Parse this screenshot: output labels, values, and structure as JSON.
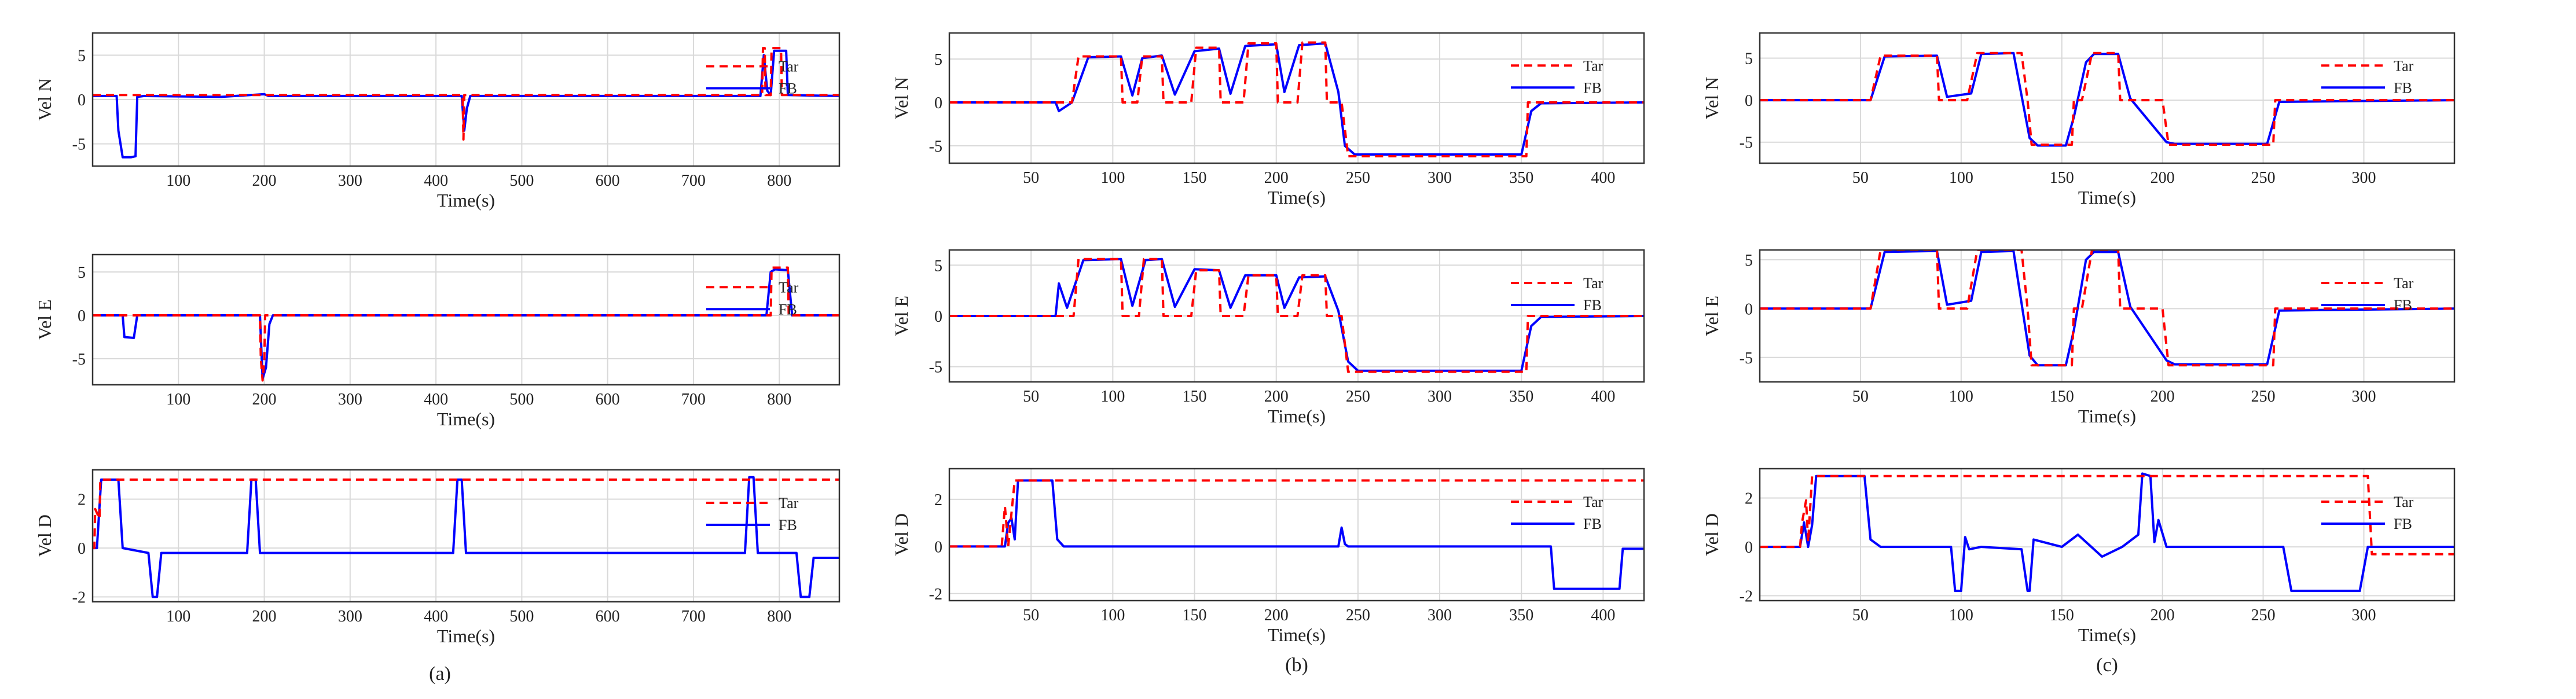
{
  "figure": {
    "colors": {
      "target": "#ff0000",
      "feedback": "#0000ff",
      "grid": "#d9d9d9",
      "axis": "#333333"
    },
    "legend": {
      "placement": "right",
      "entries": [
        "Tar",
        "FB"
      ]
    },
    "panel_labels": [
      "(a)",
      "(b)",
      "(c)"
    ]
  },
  "chart_data": [
    {
      "type": "line",
      "column": "(a)",
      "ylabel": "Vel N",
      "xlabel": "Time(s)",
      "xlim": [
        0,
        870
      ],
      "ylim": [
        -7.5,
        7.5
      ],
      "xticks": [
        100,
        200,
        300,
        400,
        500,
        600,
        700,
        800
      ],
      "yticks": [
        5,
        0,
        -5
      ],
      "series": [
        {
          "name": "Tar",
          "x": [
            0,
            45,
            46,
            47,
            48,
            49,
            50,
            430,
            431,
            432,
            433,
            436,
            437,
            780,
            781,
            783,
            784,
            790,
            791,
            792,
            793,
            800,
            801,
            802,
            803,
            870
          ],
          "y": [
            0.5,
            0.5,
            0.5,
            0.5,
            0.5,
            0.5,
            0.5,
            0.5,
            0.5,
            -4.5,
            0.5,
            0.5,
            0.5,
            0.5,
            5.8,
            5.8,
            0.5,
            0.5,
            5.8,
            5.8,
            5.8,
            5.8,
            5.8,
            5.8,
            0.5,
            0.5
          ]
        },
        {
          "name": "FB",
          "x": [
            0,
            28,
            30,
            35,
            45,
            50,
            52,
            60,
            150,
            200,
            205,
            430,
            433,
            436,
            440,
            778,
            782,
            786,
            790,
            794,
            808,
            810,
            870
          ],
          "y": [
            0.4,
            0.4,
            -3.5,
            -6.5,
            -6.5,
            -6.4,
            0.3,
            0.4,
            0.3,
            0.6,
            0.4,
            0.4,
            -3.5,
            -1.0,
            0.4,
            0.4,
            5.0,
            1.0,
            0.5,
            5.5,
            5.5,
            0.5,
            0.4
          ]
        }
      ]
    },
    {
      "type": "line",
      "column": "(a)",
      "ylabel": "Vel E",
      "xlabel": "Time(s)",
      "xlim": [
        0,
        870
      ],
      "ylim": [
        -8,
        7
      ],
      "xticks": [
        100,
        200,
        300,
        400,
        500,
        600,
        700,
        800
      ],
      "yticks": [
        5,
        0,
        -5
      ],
      "series": [
        {
          "name": "Tar",
          "x": [
            0,
            195,
            196,
            198,
            200,
            201,
            790,
            791,
            810,
            811,
            870
          ],
          "y": [
            0,
            0,
            -5,
            -7.5,
            -5,
            0,
            0,
            5.5,
            5.5,
            0,
            0
          ]
        },
        {
          "name": "FB",
          "x": [
            0,
            35,
            37,
            48,
            52,
            60,
            190,
            195,
            198,
            202,
            206,
            210,
            785,
            790,
            795,
            810,
            815,
            870
          ],
          "y": [
            0,
            0,
            -2.5,
            -2.6,
            0,
            0,
            0,
            0,
            -7.3,
            -6.0,
            -1.0,
            0,
            0,
            5.0,
            5.3,
            5.2,
            0,
            0
          ]
        }
      ]
    },
    {
      "type": "line",
      "column": "(a)",
      "ylabel": "Vel D",
      "xlabel": "Time(s)",
      "xlim": [
        0,
        870
      ],
      "ylim": [
        -2.2,
        3.2
      ],
      "xticks": [
        100,
        200,
        300,
        400,
        500,
        600,
        700,
        800
      ],
      "yticks": [
        2,
        0,
        -2
      ],
      "series": [
        {
          "name": "Tar",
          "x": [
            0,
            2,
            3,
            8,
            9,
            12,
            870
          ],
          "y": [
            0,
            0,
            1.6,
            1.2,
            2.8,
            2.8,
            2.8
          ]
        },
        {
          "name": "FB",
          "x": [
            0,
            5,
            10,
            30,
            35,
            65,
            70,
            75,
            80,
            180,
            185,
            190,
            195,
            420,
            425,
            430,
            435,
            760,
            765,
            770,
            775,
            790,
            800,
            820,
            825,
            835,
            840,
            870
          ],
          "y": [
            0,
            0,
            2.8,
            2.8,
            0,
            -0.2,
            -2.0,
            -2.0,
            -0.2,
            -0.2,
            2.8,
            2.8,
            -0.2,
            -0.2,
            2.8,
            2.8,
            -0.2,
            -0.2,
            2.9,
            2.9,
            -0.2,
            -0.2,
            -0.2,
            -0.2,
            -2.0,
            -2.0,
            -0.4,
            -0.4
          ]
        }
      ]
    },
    {
      "type": "line",
      "column": "(b)",
      "ylabel": "Vel N",
      "xlabel": "Time(s)",
      "xlim": [
        0,
        425
      ],
      "ylim": [
        -7,
        8
      ],
      "xticks": [
        50,
        100,
        150,
        200,
        250,
        300,
        350,
        400
      ],
      "yticks": [
        5,
        0,
        -5
      ],
      "series": [
        {
          "name": "Tar",
          "x": [
            0,
            75,
            79,
            105,
            106,
            115,
            118,
            130,
            131,
            148,
            151,
            165,
            166,
            180,
            183,
            200,
            201,
            213,
            216,
            230,
            231,
            240,
            244,
            353,
            354,
            425
          ],
          "y": [
            0,
            0,
            5.3,
            5.3,
            0,
            0,
            5.3,
            5.3,
            0,
            0,
            6.3,
            6.3,
            0,
            0,
            6.8,
            6.8,
            0,
            0,
            6.9,
            6.9,
            0,
            0,
            -6.2,
            -6.2,
            0,
            0
          ]
        },
        {
          "name": "FB",
          "x": [
            0,
            65,
            67,
            75,
            85,
            105,
            112,
            118,
            130,
            138,
            150,
            165,
            172,
            181,
            200,
            205,
            214,
            230,
            238,
            242,
            248,
            350,
            356,
            362,
            425
          ],
          "y": [
            0,
            0,
            -1.0,
            0,
            5.2,
            5.3,
            0.8,
            5.1,
            5.4,
            0.9,
            5.9,
            6.2,
            1.0,
            6.5,
            6.7,
            1.2,
            6.6,
            6.8,
            1.2,
            -5.0,
            -6.0,
            -6.0,
            -1.0,
            -0.1,
            0
          ]
        }
      ]
    },
    {
      "type": "line",
      "column": "(b)",
      "ylabel": "Vel E",
      "xlabel": "Time(s)",
      "xlim": [
        0,
        425
      ],
      "ylim": [
        -6.5,
        6.5
      ],
      "xticks": [
        50,
        100,
        150,
        200,
        250,
        300,
        350,
        400
      ],
      "yticks": [
        5,
        0,
        -5
      ],
      "series": [
        {
          "name": "Tar",
          "x": [
            0,
            76,
            79,
            105,
            106,
            116,
            119,
            130,
            131,
            148,
            151,
            165,
            166,
            180,
            183,
            200,
            201,
            213,
            216,
            230,
            231,
            240,
            244,
            353,
            354,
            425
          ],
          "y": [
            0,
            0,
            5.6,
            5.6,
            0,
            0,
            5.6,
            5.6,
            0,
            0,
            4.5,
            4.5,
            0,
            0,
            4.0,
            4.0,
            0,
            0,
            4.0,
            4.0,
            0,
            0,
            -5.5,
            -5.5,
            0,
            0
          ]
        },
        {
          "name": "FB",
          "x": [
            0,
            65,
            67,
            72,
            82,
            105,
            112,
            120,
            130,
            138,
            150,
            165,
            172,
            181,
            200,
            205,
            214,
            230,
            238,
            244,
            250,
            350,
            356,
            362,
            425
          ],
          "y": [
            0,
            0,
            3.2,
            0.8,
            5.5,
            5.6,
            1.0,
            5.5,
            5.6,
            0.9,
            4.6,
            4.5,
            0.8,
            4.0,
            4.0,
            0.8,
            3.8,
            3.9,
            0.5,
            -4.5,
            -5.4,
            -5.4,
            -1.0,
            -0.1,
            0
          ]
        }
      ]
    },
    {
      "type": "line",
      "column": "(b)",
      "ylabel": "Vel D",
      "xlabel": "Time(s)",
      "xlim": [
        0,
        425
      ],
      "ylim": [
        -2.3,
        3.3
      ],
      "xticks": [
        50,
        100,
        150,
        200,
        250,
        300,
        350,
        400
      ],
      "yticks": [
        2,
        0,
        -2
      ],
      "series": [
        {
          "name": "Tar",
          "x": [
            0,
            32,
            34,
            36,
            40,
            425
          ],
          "y": [
            0,
            0,
            1.7,
            0,
            2.8,
            2.8
          ]
        },
        {
          "name": "FB",
          "x": [
            0,
            34,
            36,
            38,
            40,
            42,
            63,
            66,
            70,
            238,
            240,
            242,
            244,
            368,
            370,
            410,
            412,
            425
          ],
          "y": [
            0,
            0,
            1.0,
            1.2,
            0.3,
            2.8,
            2.8,
            0.3,
            0,
            0,
            0.8,
            0.1,
            0,
            0,
            -1.8,
            -1.8,
            -0.1,
            -0.1
          ]
        }
      ]
    },
    {
      "type": "line",
      "column": "(c)",
      "ylabel": "Vel N",
      "xlabel": "Time(s)",
      "xlim": [
        0,
        345
      ],
      "ylim": [
        -7.5,
        8
      ],
      "xticks": [
        50,
        100,
        150,
        200,
        250,
        300
      ],
      "yticks": [
        5,
        0,
        -5
      ],
      "series": [
        {
          "name": "Tar",
          "x": [
            0,
            55,
            60,
            88,
            89,
            103,
            108,
            130,
            133,
            135,
            140,
            155,
            156,
            160,
            165,
            178,
            179,
            200,
            203,
            255,
            256,
            345
          ],
          "y": [
            0,
            0,
            5.3,
            5.3,
            0,
            0,
            5.6,
            5.6,
            0,
            -5.3,
            -5.3,
            -5.3,
            0,
            0,
            5.6,
            5.6,
            0,
            0,
            -5.3,
            -5.3,
            0,
            0
          ]
        },
        {
          "name": "FB",
          "x": [
            0,
            55,
            62,
            88,
            93,
            105,
            110,
            126,
            134,
            138,
            152,
            156,
            162,
            166,
            178,
            184,
            202,
            206,
            252,
            258,
            345
          ],
          "y": [
            0,
            0,
            5.2,
            5.3,
            0.4,
            0.8,
            5.5,
            5.6,
            -4.5,
            -5.4,
            -5.4,
            -2.0,
            4.5,
            5.5,
            5.5,
            0.2,
            -5.0,
            -5.2,
            -5.2,
            -0.2,
            0
          ]
        }
      ]
    },
    {
      "type": "line",
      "column": "(c)",
      "ylabel": "Vel E",
      "xlabel": "Time(s)",
      "xlim": [
        0,
        345
      ],
      "ylim": [
        -7.5,
        6
      ],
      "xticks": [
        50,
        100,
        150,
        200,
        250,
        300
      ],
      "yticks": [
        5,
        0,
        -5
      ],
      "series": [
        {
          "name": "Tar",
          "x": [
            0,
            55,
            60,
            88,
            89,
            103,
            108,
            130,
            133,
            135,
            140,
            155,
            156,
            160,
            165,
            178,
            179,
            200,
            203,
            255,
            256,
            345
          ],
          "y": [
            0,
            0,
            6,
            6,
            0,
            0,
            6,
            6,
            0,
            -5.8,
            -5.8,
            -5.8,
            0,
            0,
            6,
            6,
            0,
            0,
            -5.8,
            -5.8,
            0,
            0
          ]
        },
        {
          "name": "FB",
          "x": [
            0,
            55,
            62,
            88,
            93,
            105,
            110,
            126,
            134,
            138,
            152,
            156,
            162,
            166,
            178,
            184,
            202,
            206,
            252,
            258,
            345
          ],
          "y": [
            0,
            0,
            5.8,
            5.9,
            0.4,
            0.8,
            5.8,
            5.9,
            -4.8,
            -5.8,
            -5.8,
            -2.2,
            5.0,
            5.8,
            5.8,
            0.2,
            -5.3,
            -5.7,
            -5.7,
            -0.2,
            0
          ]
        }
      ]
    },
    {
      "type": "line",
      "column": "(c)",
      "ylabel": "Vel D",
      "xlabel": "Time(s)",
      "xlim": [
        0,
        345
      ],
      "ylim": [
        -2.2,
        3.2
      ],
      "xticks": [
        50,
        100,
        150,
        200,
        250,
        300
      ],
      "yticks": [
        2,
        0,
        -2
      ],
      "series": [
        {
          "name": "Tar",
          "x": [
            0,
            20,
            21,
            23,
            24,
            26,
            28,
            302,
            304,
            320,
            322,
            345
          ],
          "y": [
            0,
            0,
            1.0,
            1.9,
            0.2,
            2.9,
            2.9,
            2.9,
            -0.3,
            -0.3,
            -0.3,
            -0.3
          ]
        },
        {
          "name": "FB",
          "x": [
            0,
            20,
            22,
            24,
            26,
            28,
            52,
            55,
            60,
            95,
            97,
            100,
            102,
            104,
            110,
            130,
            133,
            134,
            136,
            150,
            158,
            170,
            180,
            188,
            190,
            194,
            196,
            198,
            202,
            206,
            260,
            264,
            298,
            302,
            305,
            345
          ],
          "y": [
            0,
            0,
            1.0,
            0,
            0.9,
            2.9,
            2.9,
            0.3,
            0,
            0,
            -1.8,
            -1.8,
            0.4,
            -0.1,
            0,
            -0.1,
            -1.8,
            -1.8,
            0.3,
            0,
            0.5,
            -0.4,
            0,
            0.5,
            3.0,
            2.9,
            0.2,
            1.1,
            0,
            0,
            0,
            -1.8,
            -1.8,
            0,
            0,
            0
          ]
        }
      ]
    }
  ]
}
